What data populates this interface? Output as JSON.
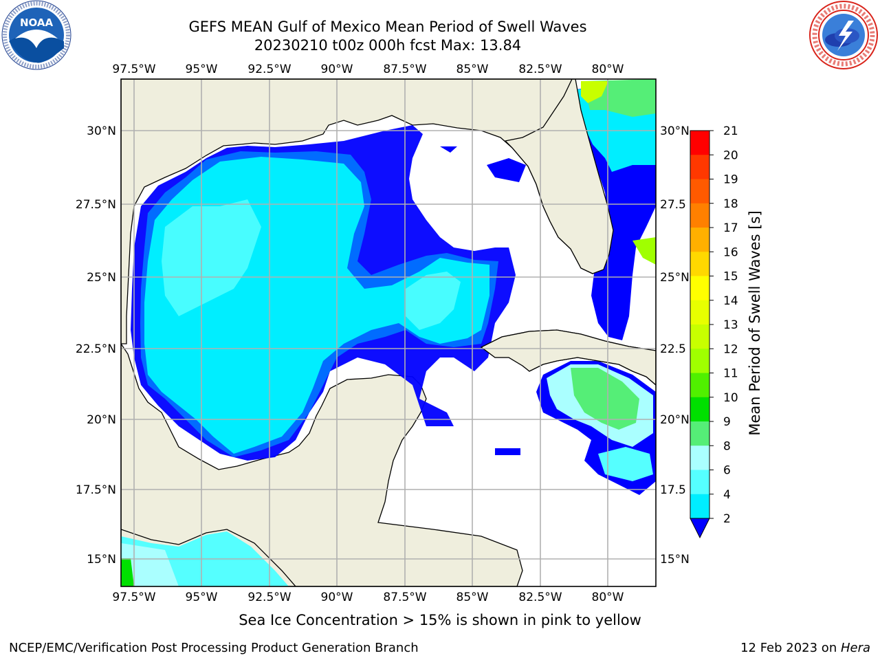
{
  "header": {
    "title": "GEFS MEAN Gulf of Mexico Mean Period of Swell Waves",
    "subtitle": "20230210 t00z 000h fcst   Max: 13.84"
  },
  "logos": {
    "noaa": {
      "text": "NOAA",
      "ring_text": "NATIONAL OCEANIC AND ATMOSPHERIC ADMINISTRATION · U.S. DEPARTMENT OF COMMERCE"
    },
    "nws": {
      "ring_text": "NATIONAL WEATHER SERVICE"
    }
  },
  "map": {
    "lon_ticks": [
      "97.5°W",
      "95°W",
      "92.5°W",
      "90°W",
      "87.5°W",
      "85°W",
      "82.5°W",
      "80°W"
    ],
    "lat_ticks_left": [
      "30°N",
      "27.5°N",
      "25°N",
      "22.5°N",
      "20°N",
      "17.5°N",
      "15°N"
    ],
    "lat_ticks_right": [
      "30°N",
      "27.5",
      "25°N",
      "22.5",
      "20°N",
      "17.5",
      "15°N"
    ],
    "colors": {
      "land": "#efeedd",
      "grid": "#b0b0b0",
      "coast": "#000000"
    }
  },
  "colorbar": {
    "title": "Mean Period of Swell Waves [s]",
    "labels": [
      "21",
      "20",
      "19",
      "18",
      "17",
      "16",
      "15",
      "14",
      "13",
      "12",
      "11",
      "10",
      "9",
      "8",
      "6",
      "4",
      "2"
    ],
    "colors": [
      "#ff0000",
      "#ff3800",
      "#ff5a00",
      "#ff8000",
      "#ffb000",
      "#ffd800",
      "#ffff00",
      "#e8ff00",
      "#c8ff00",
      "#a0ff00",
      "#50f000",
      "#00e000",
      "#55ee77",
      "#aaffff",
      "#55ffff",
      "#00eeff",
      "#0077ff",
      "#0000ff"
    ]
  },
  "footer": {
    "caption": "Sea Ice Concentration > 15% is shown in pink to yellow",
    "left": "NCEP/EMC/Verification Post Processing Product Generation Branch",
    "right_date": "12 Feb 2023 on ",
    "right_host": "Hera"
  }
}
